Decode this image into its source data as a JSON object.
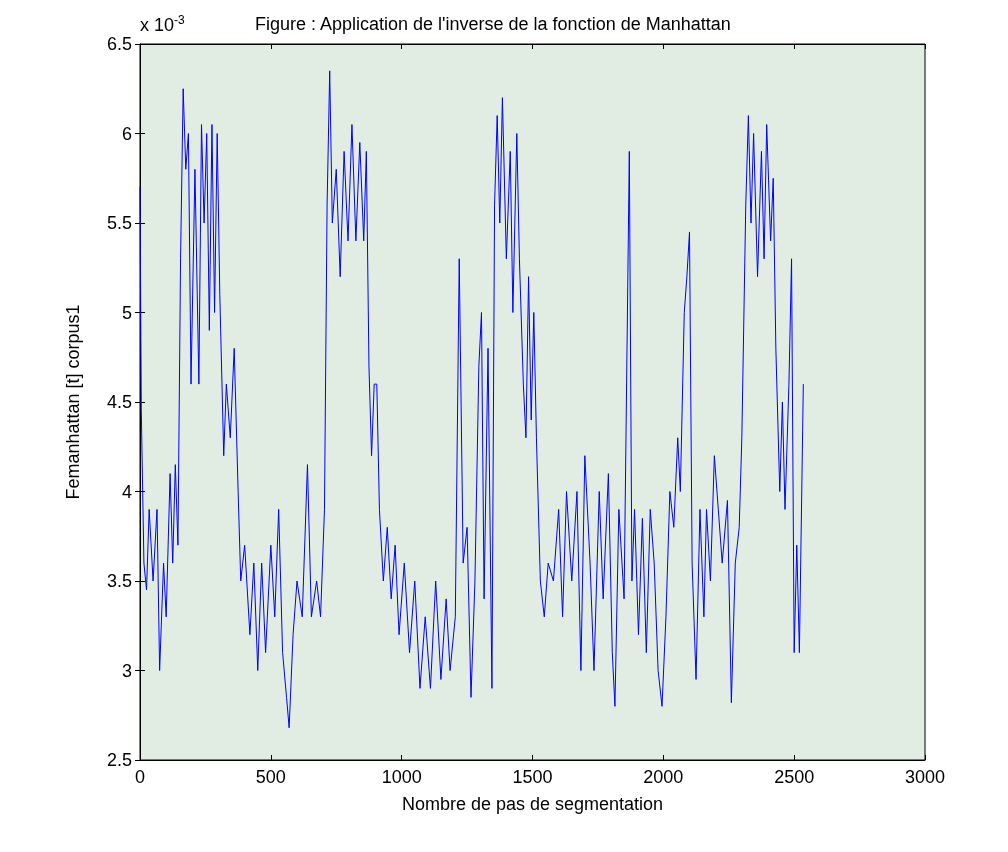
{
  "chart_data": {
    "type": "line",
    "title": "Figure : Application de l'inverse de la fonction de Manhattan",
    "xlabel": "Nombre de pas de segmentation",
    "ylabel": "Femanhattan [t] corpus1",
    "annotations": [
      "x 10$^{-3}$"
    ],
    "x": [
      0,
      5,
      15,
      25,
      35,
      50,
      65,
      75,
      90,
      100,
      115,
      125,
      135,
      145,
      155,
      165,
      175,
      185,
      195,
      210,
      225,
      235,
      245,
      255,
      265,
      275,
      285,
      295,
      305,
      320,
      330,
      345,
      360,
      375,
      385,
      400,
      420,
      435,
      450,
      465,
      480,
      500,
      515,
      530,
      545,
      560,
      570,
      585,
      600,
      620,
      640,
      655,
      675,
      690,
      705,
      715,
      725,
      735,
      750,
      765,
      780,
      795,
      810,
      825,
      840,
      855,
      865,
      875,
      885,
      895,
      905,
      915,
      930,
      945,
      960,
      975,
      990,
      1010,
      1030,
      1050,
      1070,
      1090,
      1110,
      1130,
      1150,
      1170,
      1185,
      1205,
      1220,
      1235,
      1250,
      1265,
      1280,
      1295,
      1305,
      1315,
      1330,
      1345,
      1355,
      1365,
      1375,
      1385,
      1400,
      1415,
      1425,
      1440,
      1450,
      1465,
      1475,
      1485,
      1495,
      1505,
      1515,
      1530,
      1545,
      1560,
      1580,
      1600,
      1615,
      1630,
      1650,
      1670,
      1685,
      1700,
      1720,
      1735,
      1755,
      1770,
      1790,
      1805,
      1815,
      1830,
      1850,
      1870,
      1880,
      1890,
      1905,
      1920,
      1935,
      1950,
      1965,
      1980,
      1995,
      2010,
      2025,
      2040,
      2055,
      2065,
      2080,
      2090,
      2100,
      2110,
      2125,
      2140,
      2155,
      2165,
      2180,
      2195,
      2210,
      2225,
      2245,
      2260,
      2275,
      2290,
      2300,
      2315,
      2325,
      2335,
      2345,
      2360,
      2375,
      2385,
      2395,
      2410,
      2420,
      2430,
      2445,
      2455,
      2465,
      2480,
      2490,
      2500,
      2510,
      2520,
      2535
    ],
    "series": [
      {
        "color": "#0000ff",
        "values": [
          5.7,
          4.45,
          3.6,
          3.45,
          3.9,
          3.5,
          3.9,
          3.0,
          3.6,
          3.3,
          4.1,
          3.6,
          4.15,
          3.7,
          5.3,
          6.25,
          5.8,
          6.0,
          4.6,
          5.8,
          4.6,
          6.05,
          5.5,
          6.0,
          4.9,
          6.05,
          5.0,
          6.0,
          5.1,
          4.2,
          4.6,
          4.3,
          4.8,
          4.0,
          3.5,
          3.7,
          3.2,
          3.6,
          3.0,
          3.6,
          3.1,
          3.7,
          3.3,
          3.9,
          3.1,
          2.85,
          2.68,
          3.2,
          3.5,
          3.3,
          4.15,
          3.3,
          3.5,
          3.3,
          3.9,
          5.6,
          6.35,
          5.5,
          5.8,
          5.2,
          5.9,
          5.4,
          6.05,
          5.4,
          5.95,
          5.4,
          5.9,
          4.7,
          4.2,
          4.6,
          4.6,
          3.9,
          3.5,
          3.8,
          3.4,
          3.7,
          3.2,
          3.6,
          3.1,
          3.5,
          2.9,
          3.3,
          2.9,
          3.5,
          2.95,
          3.4,
          3.0,
          3.3,
          5.3,
          3.6,
          3.8,
          2.85,
          3.5,
          4.7,
          5.0,
          3.4,
          4.8,
          2.9,
          5.6,
          6.1,
          5.5,
          6.2,
          5.3,
          5.9,
          5.0,
          6.0,
          5.3,
          4.6,
          4.3,
          5.2,
          4.4,
          5.0,
          4.3,
          3.5,
          3.3,
          3.6,
          3.5,
          3.9,
          3.3,
          4.0,
          3.5,
          4.0,
          3.0,
          4.2,
          3.6,
          3.0,
          4.0,
          3.4,
          4.1,
          3.1,
          2.8,
          3.9,
          3.4,
          5.9,
          3.5,
          3.9,
          3.2,
          3.85,
          3.1,
          3.9,
          3.6,
          3.0,
          2.8,
          3.3,
          4.0,
          3.8,
          4.3,
          4.0,
          5.0,
          5.2,
          5.45,
          3.6,
          2.95,
          3.9,
          3.3,
          3.9,
          3.5,
          4.2,
          3.9,
          3.6,
          3.95,
          2.82,
          3.6,
          3.8,
          4.3,
          5.6,
          6.1,
          5.5,
          6.0,
          5.2,
          5.9,
          5.3,
          6.05,
          5.4,
          5.75,
          4.8,
          4.0,
          4.5,
          3.9,
          4.6,
          5.3,
          3.1,
          3.7,
          3.1,
          4.6
        ]
      }
    ],
    "xlim": [
      0,
      3000
    ],
    "xticks": [
      0,
      500,
      1000,
      1500,
      2000,
      2500,
      3000
    ],
    "ylim": [
      2.5,
      6.5
    ],
    "yticks": [
      2.5,
      3,
      3.5,
      4,
      4.5,
      5,
      5.5,
      6,
      6.5
    ],
    "grid": false,
    "marker": "none",
    "line_style": "solid"
  }
}
